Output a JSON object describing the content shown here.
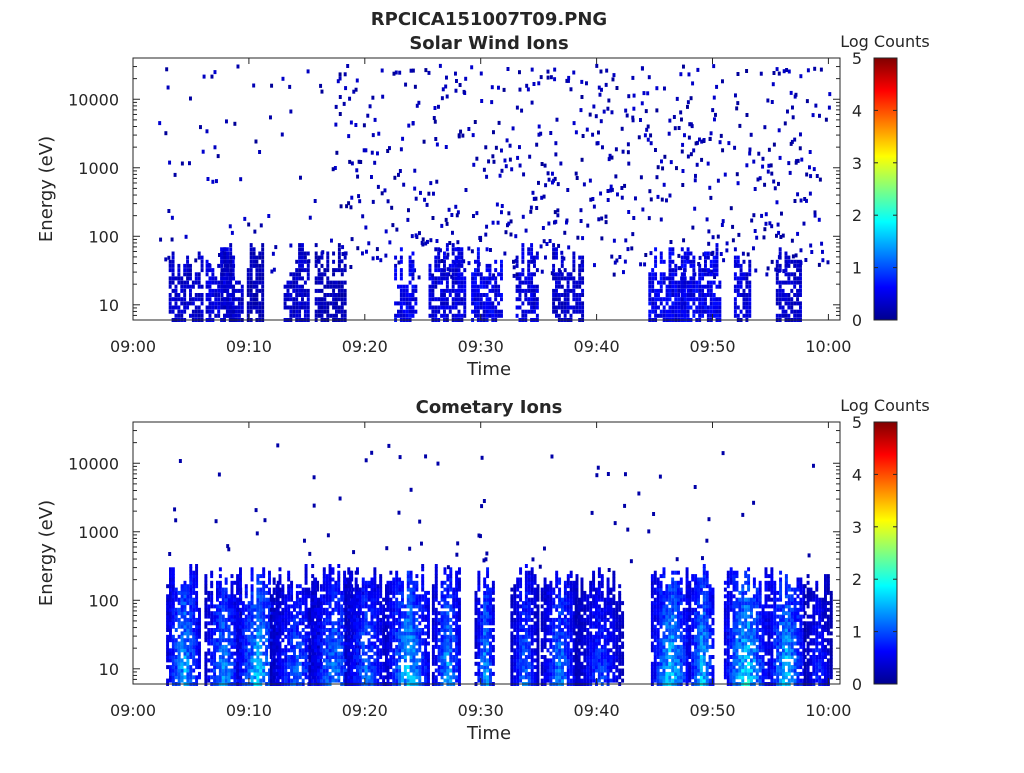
{
  "figure_title": "RPCICA151007T09.PNG",
  "colorbar": {
    "label": "Log Counts",
    "min": 0,
    "max": 5,
    "ticks": [
      "0",
      "1",
      "2",
      "3",
      "4",
      "5"
    ],
    "colormap": "jet"
  },
  "chart_data": [
    {
      "type": "heatmap",
      "title": "Solar Wind Ions",
      "xlabel": "Time",
      "ylabel": "Energy (eV)",
      "x_range": [
        "09:00",
        "10:01"
      ],
      "x_ticks": [
        "09:00",
        "09:10",
        "09:20",
        "09:30",
        "09:40",
        "09:50",
        "10:00"
      ],
      "y_scale": "log",
      "y_range": [
        6,
        40000
      ],
      "y_ticks": [
        "10",
        "100",
        "1000",
        "10000"
      ],
      "value_unit": "Log Counts",
      "low_energy_bursts": [
        {
          "t": 4.5,
          "log_counts": 0.4
        },
        {
          "t": 7.5,
          "log_counts": 0.5
        },
        {
          "t": 8.5,
          "log_counts": 0.4
        },
        {
          "t": 10.5,
          "log_counts": 0.3
        },
        {
          "t": 14.0,
          "log_counts": 0.4
        },
        {
          "t": 17.0,
          "log_counts": 0.3
        },
        {
          "t": 23.5,
          "log_counts": 0.6
        },
        {
          "t": 27.0,
          "log_counts": 0.5
        },
        {
          "t": 30.5,
          "log_counts": 0.6
        },
        {
          "t": 34.0,
          "log_counts": 0.5
        },
        {
          "t": 37.5,
          "log_counts": 0.4
        },
        {
          "t": 46.0,
          "log_counts": 0.6
        },
        {
          "t": 49.0,
          "log_counts": 0.6
        },
        {
          "t": 52.5,
          "log_counts": 0.5
        },
        {
          "t": 56.5,
          "log_counts": 0.4
        }
      ]
    },
    {
      "type": "heatmap",
      "title": "Cometary Ions",
      "xlabel": "Time",
      "ylabel": "Energy (eV)",
      "x_range": [
        "09:00",
        "10:01"
      ],
      "x_ticks": [
        "09:00",
        "09:10",
        "09:20",
        "09:30",
        "09:40",
        "09:50",
        "10:00"
      ],
      "y_scale": "log",
      "y_range": [
        6,
        40000
      ],
      "y_ticks": [
        "10",
        "100",
        "1000",
        "10000"
      ],
      "value_unit": "Log Counts",
      "ion_bursts": [
        {
          "t": 4.3,
          "log_counts": 1.8
        },
        {
          "t": 7.7,
          "log_counts": 1.6
        },
        {
          "t": 10.7,
          "log_counts": 1.9
        },
        {
          "t": 14.0,
          "log_counts": 1.3
        },
        {
          "t": 17.3,
          "log_counts": 1.5
        },
        {
          "t": 20.0,
          "log_counts": 1.4
        },
        {
          "t": 23.7,
          "log_counts": 1.9
        },
        {
          "t": 27.0,
          "log_counts": 1.7
        },
        {
          "t": 30.3,
          "log_counts": 1.7
        },
        {
          "t": 33.7,
          "log_counts": 1.4
        },
        {
          "t": 36.7,
          "log_counts": 1.5
        },
        {
          "t": 40.2,
          "log_counts": 1.1
        },
        {
          "t": 46.3,
          "log_counts": 2.0
        },
        {
          "t": 49.0,
          "log_counts": 1.9
        },
        {
          "t": 52.8,
          "log_counts": 2.1
        },
        {
          "t": 56.3,
          "log_counts": 1.9
        },
        {
          "t": 59.0,
          "log_counts": 1.0
        }
      ]
    }
  ]
}
